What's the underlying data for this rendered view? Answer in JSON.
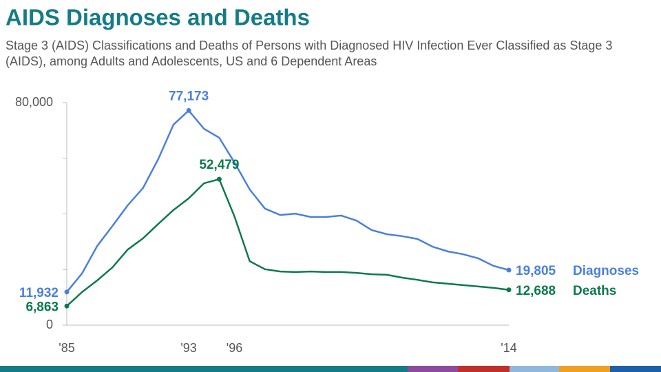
{
  "chart_data": {
    "type": "line",
    "title": "AIDS Diagnoses and Deaths",
    "subtitle": "Stage 3 (AIDS) Classifications and Deaths of Persons with Diagnosed HIV Infection Ever Classified as Stage 3 (AIDS), among Adults and Adolescents, US and 6 Dependent Areas",
    "categories": [
      "'85",
      null,
      null,
      null,
      null,
      null,
      null,
      null,
      "'93",
      null,
      null,
      "'96",
      null,
      null,
      null,
      null,
      null,
      null,
      null,
      null,
      null,
      null,
      null,
      null,
      null,
      null,
      null,
      null,
      null,
      "'14"
    ],
    "ylim": [
      0,
      80000
    ],
    "yticks": [
      0,
      {
        "value": 80000,
        "label": "80,000"
      }
    ],
    "yminorticks": [
      20000,
      40000,
      60000
    ],
    "series": [
      {
        "name": "Diagnoses",
        "color": "#4a7fe0",
        "values": [
          11932,
          18600,
          28500,
          35700,
          43100,
          49300,
          59700,
          72100,
          77173,
          70600,
          67400,
          58500,
          48800,
          41900,
          39600,
          40100,
          38900,
          38900,
          39400,
          37600,
          34200,
          32700,
          32000,
          31000,
          28200,
          26500,
          25500,
          24000,
          21300,
          19805
        ],
        "value_labels": [
          "11,932",
          null,
          null,
          null,
          null,
          null,
          null,
          null,
          "77,173",
          null,
          null,
          null,
          null,
          null,
          null,
          null,
          null,
          null,
          null,
          null,
          null,
          null,
          null,
          null,
          null,
          null,
          null,
          null,
          null,
          "19,805"
        ]
      },
      {
        "name": "Deaths",
        "color": "#0b7a4c",
        "values": [
          6863,
          11900,
          16100,
          20800,
          27200,
          31200,
          36400,
          41400,
          45600,
          51000,
          52479,
          39100,
          23000,
          20100,
          19300,
          19100,
          19300,
          19100,
          19100,
          18800,
          18300,
          18100,
          17100,
          16300,
          15400,
          14900,
          14400,
          13900,
          13400,
          12688
        ],
        "value_labels": [
          "6,863",
          null,
          null,
          null,
          null,
          null,
          null,
          null,
          null,
          null,
          "52,479",
          null,
          null,
          null,
          null,
          null,
          null,
          null,
          null,
          null,
          null,
          null,
          null,
          null,
          null,
          null,
          null,
          null,
          null,
          "12,688"
        ]
      }
    ]
  }
}
